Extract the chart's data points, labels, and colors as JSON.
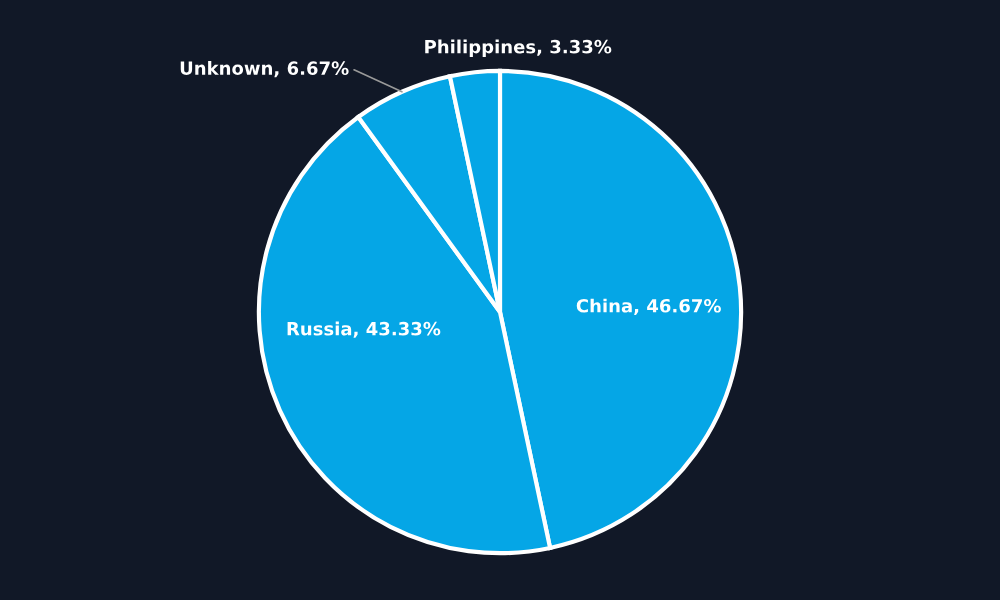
{
  "chart_data": {
    "type": "pie",
    "categories": [
      "China",
      "Russia",
      "Unknown",
      "Philippines"
    ],
    "values": [
      46.67,
      43.33,
      6.67,
      3.33
    ],
    "colors": [
      "#05a6e6",
      "#05a6e6",
      "#05a6e6",
      "#05a6e6"
    ],
    "value_labels": [
      "46.67%",
      "43.33%",
      "6.67%",
      "3.33%"
    ],
    "legend": false
  }
}
